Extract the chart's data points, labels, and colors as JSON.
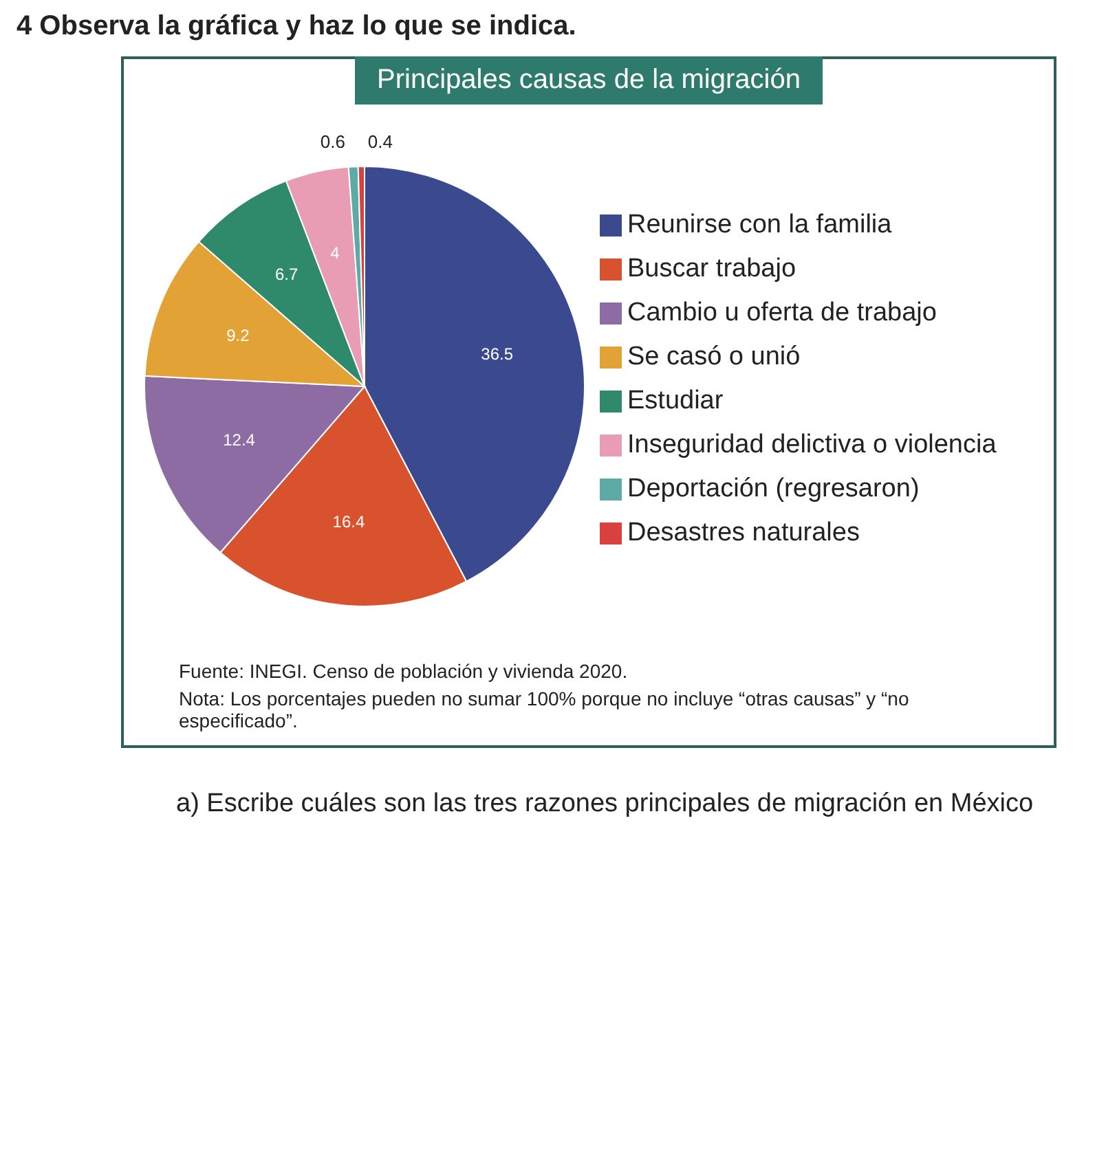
{
  "chart_data": {
    "type": "pie",
    "title": "Principales causas de la migración",
    "categories": [
      "Reunirse con la familia",
      "Buscar trabajo",
      "Cambio u oferta de trabajo",
      "Se casó o unió",
      "Estudiar",
      "Inseguridad delictiva o violencia",
      "Deportación (regresaron)",
      "Desastres naturales"
    ],
    "values": [
      36.5,
      16.4,
      12.4,
      9.2,
      6.7,
      4,
      0.6,
      0.4
    ],
    "colors": [
      "#3b4a8e",
      "#d9522e",
      "#8d6ba3",
      "#e3a236",
      "#2e8a6b",
      "#e99db4",
      "#5eaaa6",
      "#d8413f"
    ],
    "data_labels": true,
    "legend": "right",
    "annotations": [
      "4 Observa la gráfica y haz lo que se indica.",
      "Fuente: INEGI. Censo de población y vivienda 2020.",
      "Nota: Los porcentajes pueden no sumar 100% porque no incluye “otras causas” y “no especificado”.",
      "a) Escribe cuáles son las tres razones principales de migración en México"
    ]
  }
}
